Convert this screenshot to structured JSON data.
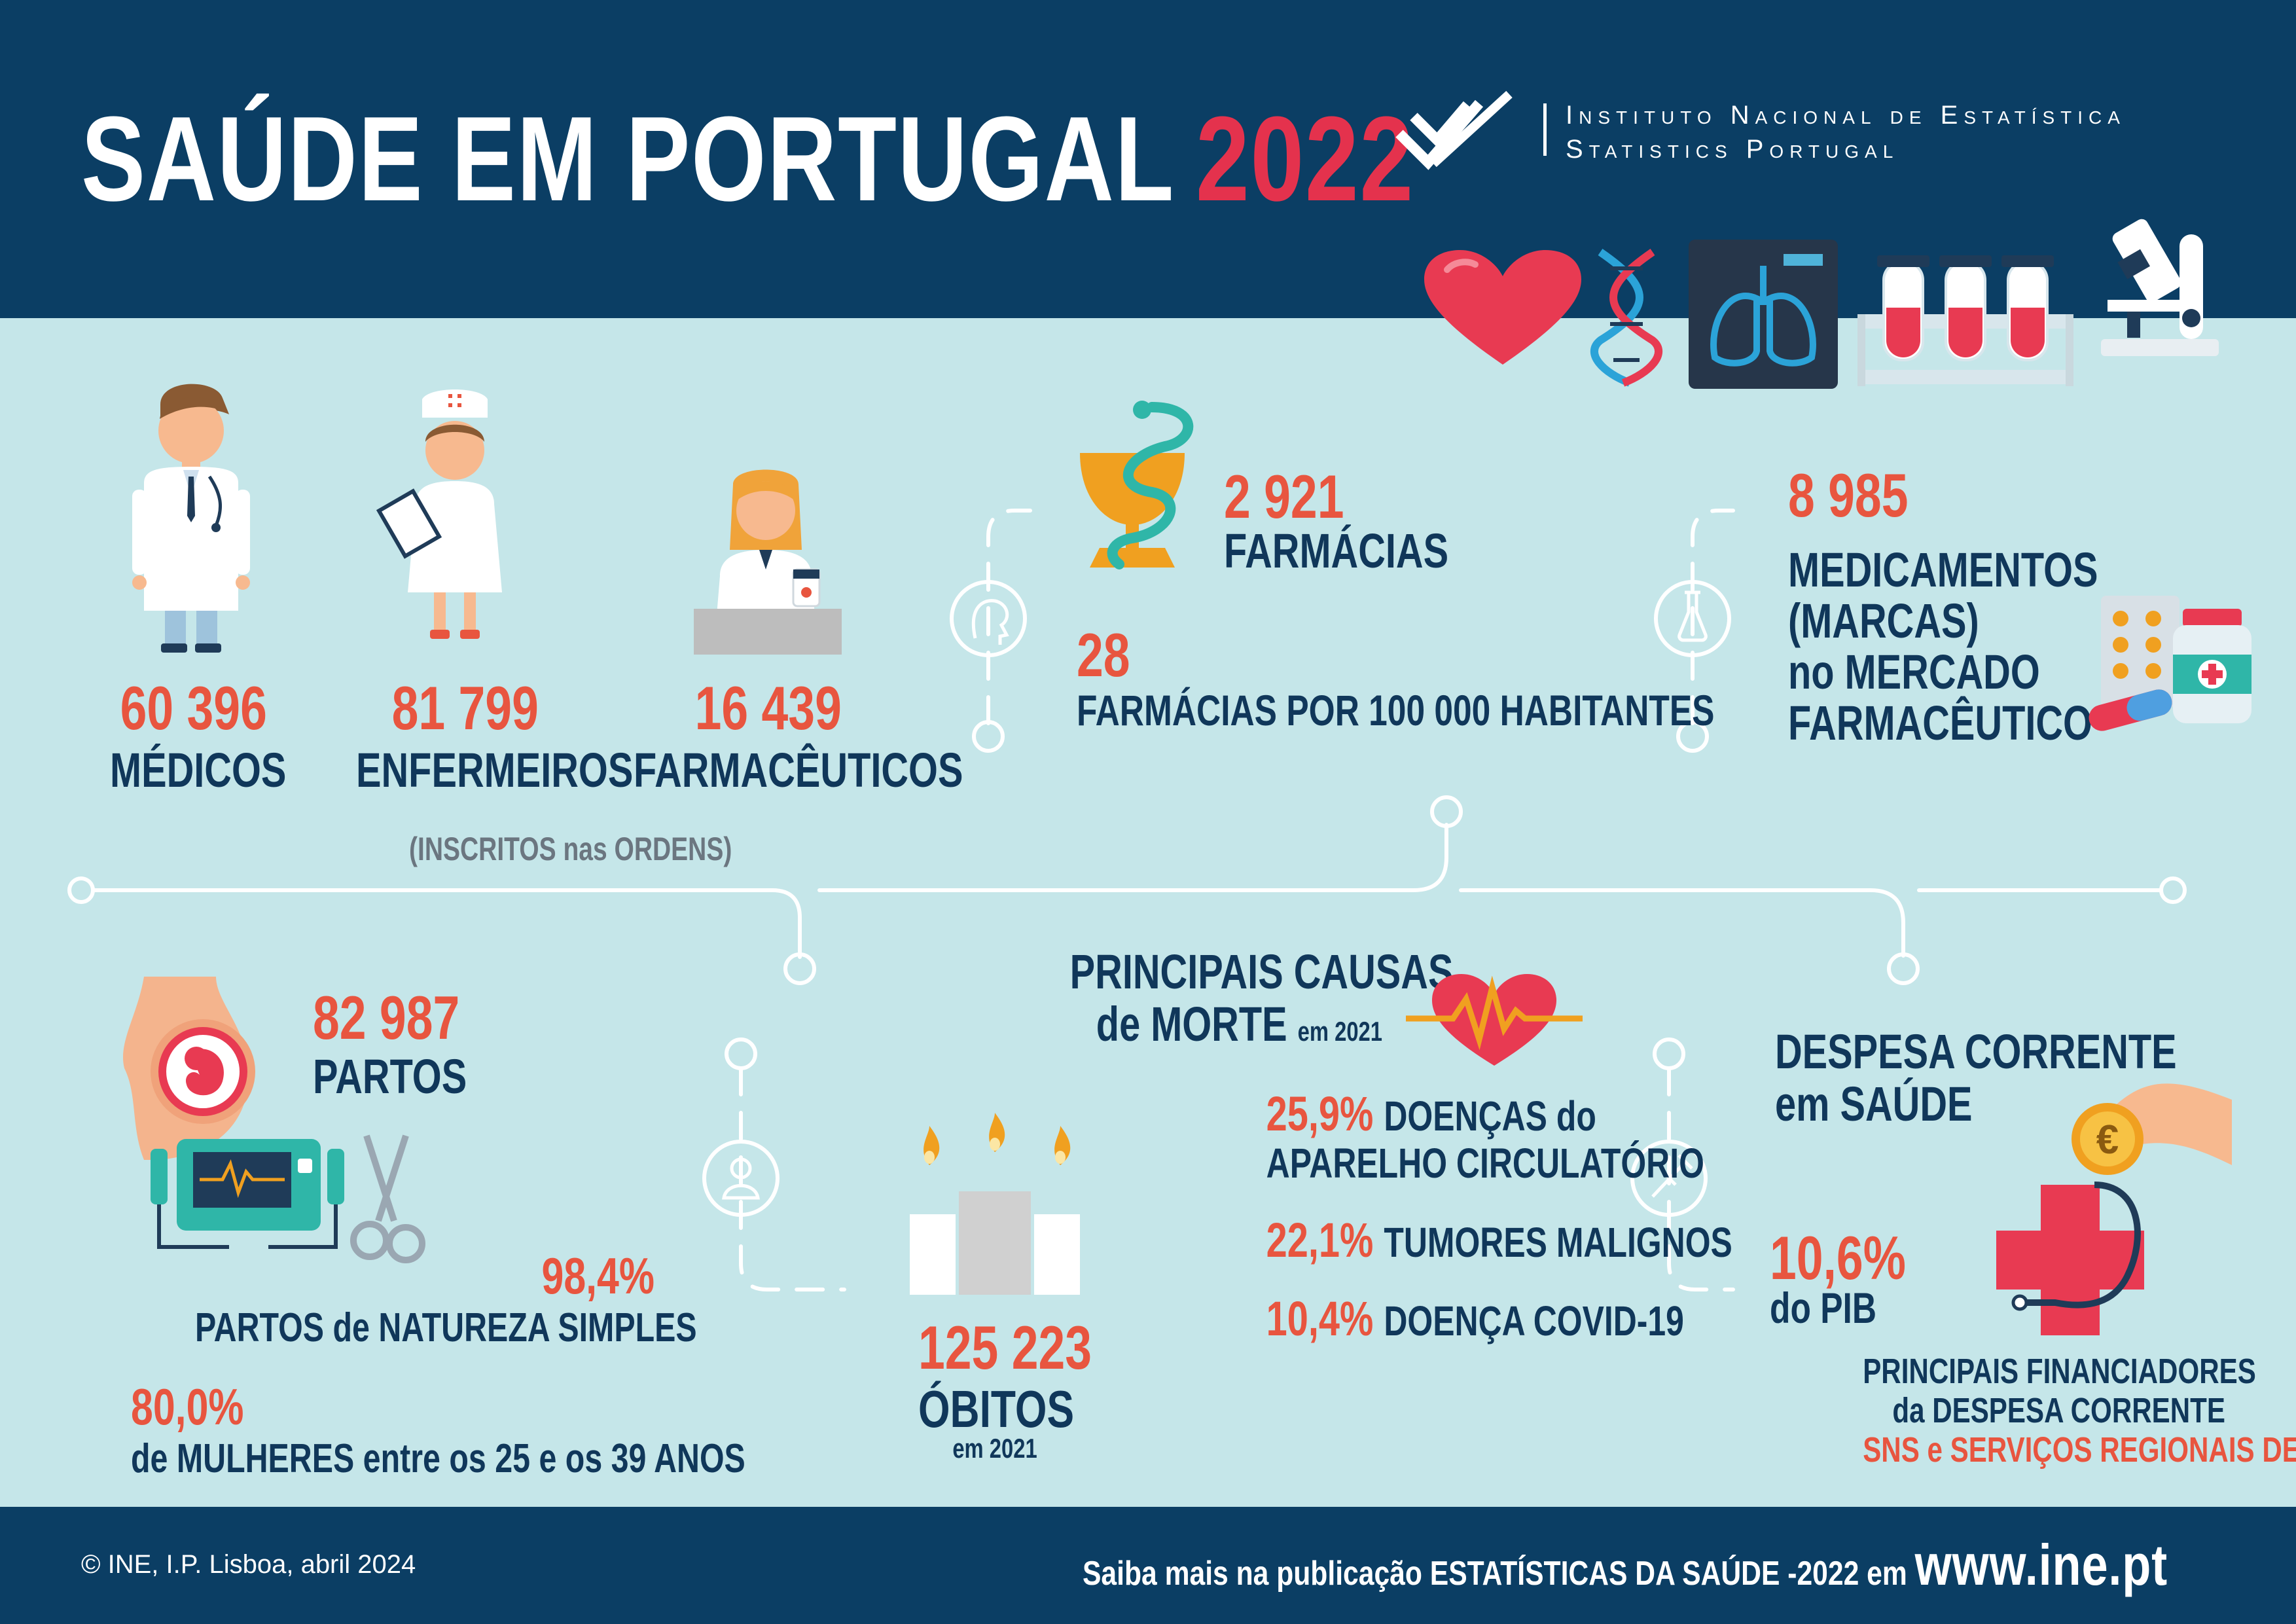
{
  "header": {
    "title": "SAÚDE EM PORTUGAL",
    "year": "2022",
    "org_name_1": "Instituto Nacional de Estatística",
    "org_name_2": "Statistics Portugal"
  },
  "professionals": {
    "medicos_value": "60 396",
    "medicos_label": "MÉDICOS",
    "enfermeiros_value": "81 799",
    "enfermeiros_label": "ENFERMEIROS",
    "farmaceuticos_value": "16 439",
    "farmaceuticos_label": "FARMACÊUTICOS",
    "note": "(INSCRITOS nas ORDENS)"
  },
  "pharmacies": {
    "count_value": "2 921",
    "count_label": "FARMÁCIAS",
    "per_value": "28",
    "per_label": "FARMÁCIAS POR 100 000 HABITANTES"
  },
  "medicines": {
    "value": "8 985",
    "label_1": "MEDICAMENTOS",
    "label_2": "(MARCAS)",
    "label_3": "no MERCADO",
    "label_4": "FARMACÊUTICO"
  },
  "births": {
    "value": "82 987",
    "label": "PARTOS",
    "simple_value": "98,4%",
    "simple_label": "PARTOS de NATUREZA SIMPLES",
    "women_value": "80,0%",
    "women_label": "de MULHERES entre os 25 e os 39 ANOS"
  },
  "deaths": {
    "value": "125 223",
    "label": "ÓBITOS",
    "year_note": "em 2021"
  },
  "causes": {
    "title_1": "PRINCIPAIS CAUSAS",
    "title_2": "de MORTE",
    "title_year": "em 2021",
    "items": [
      {
        "value": "25,9%",
        "label": "DOENÇAS do",
        "label_2": "APARELHO CIRCULATÓRIO"
      },
      {
        "value": "22,1%",
        "label": "TUMORES MALIGNOS"
      },
      {
        "value": "10,4%",
        "label": "DOENÇA COVID-19"
      }
    ]
  },
  "expenditure": {
    "title_1": "DESPESA CORRENTE",
    "title_2": "em SAÚDE",
    "value": "10,6%",
    "label": "do PIB",
    "financers_1": "PRINCIPAIS FINANCIADORES",
    "financers_2": "da DESPESA CORRENTE",
    "financers_3": "SNS e SERVIÇOS REGIONAIS DE SAÚDE"
  },
  "footer": {
    "copyright": "© INE, I.P. Lisboa, abril 2024",
    "more_info": "Saiba mais na publicação ESTATÍSTICAS DA SAÚDE -2022 em",
    "url": "www.ine.pt"
  },
  "colors": {
    "navy": "#0b3e64",
    "background": "#c5e6e9",
    "accent_red": "#e8553f",
    "title_red": "#e4324d"
  },
  "icons": [
    "heart-icon",
    "dna-icon",
    "lungs-xray-icon",
    "test-tubes-icon",
    "microscope-icon",
    "doctor-icon",
    "nurse-icon",
    "pharmacist-icon",
    "pharmacy-cup-icon",
    "medicines-icon",
    "pregnancy-icon",
    "ecg-monitor-icon",
    "scissors-icon",
    "candles-icon",
    "heartbeat-icon",
    "money-cross-icon"
  ]
}
